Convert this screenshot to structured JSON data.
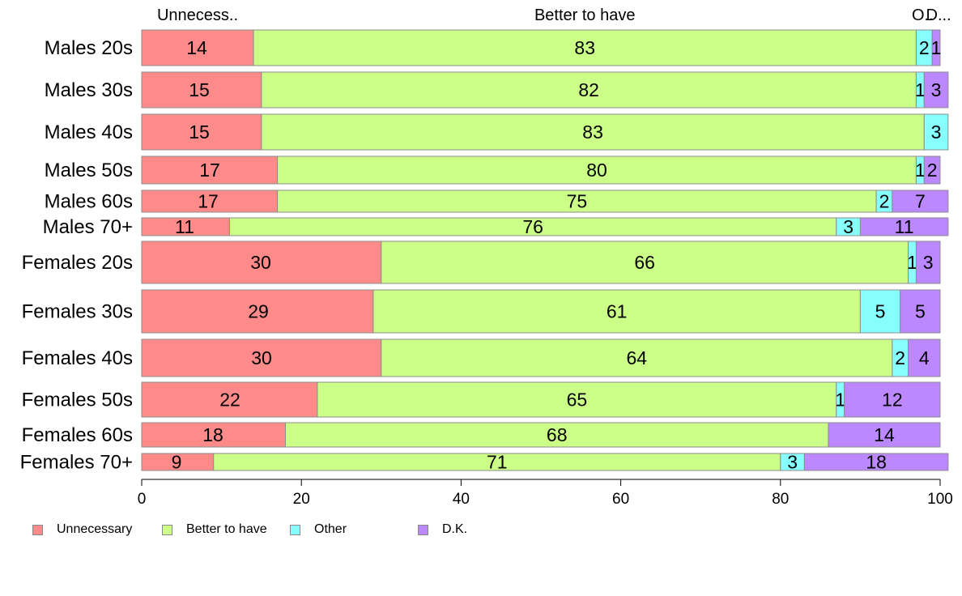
{
  "chart_data": {
    "type": "bar",
    "orientation": "horizontal",
    "stacked": true,
    "categories": [
      "Males 20s",
      "Males 30s",
      "Males 40s",
      "Males 50s",
      "Males 60s",
      "Males 70+",
      "Females 20s",
      "Females 30s",
      "Females 40s",
      "Females 50s",
      "Females 60s",
      "Females 70+"
    ],
    "series": [
      {
        "name": "Unnecessary",
        "color": "#ff8a8a",
        "values": [
          14,
          15,
          15,
          17,
          17,
          11,
          30,
          29,
          30,
          22,
          18,
          9
        ]
      },
      {
        "name": "Better to have",
        "color": "#ccff88",
        "values": [
          83,
          82,
          83,
          80,
          75,
          76,
          66,
          61,
          64,
          65,
          68,
          71
        ]
      },
      {
        "name": "Other",
        "color": "#88ffff",
        "values": [
          2,
          1,
          3,
          1,
          2,
          3,
          1,
          5,
          2,
          1,
          0,
          3
        ]
      },
      {
        "name": "D.K.",
        "color": "#bb88ff",
        "values": [
          1,
          3,
          0,
          2,
          7,
          11,
          3,
          5,
          4,
          12,
          14,
          18
        ]
      }
    ],
    "column_headers": [
      "Unnecess..",
      "Better to have",
      "O..",
      "D..."
    ],
    "xlim": [
      0,
      100
    ],
    "xticks": [
      0,
      20,
      40,
      60,
      80,
      100
    ],
    "legend_position": "bottom-left",
    "grid": false
  }
}
